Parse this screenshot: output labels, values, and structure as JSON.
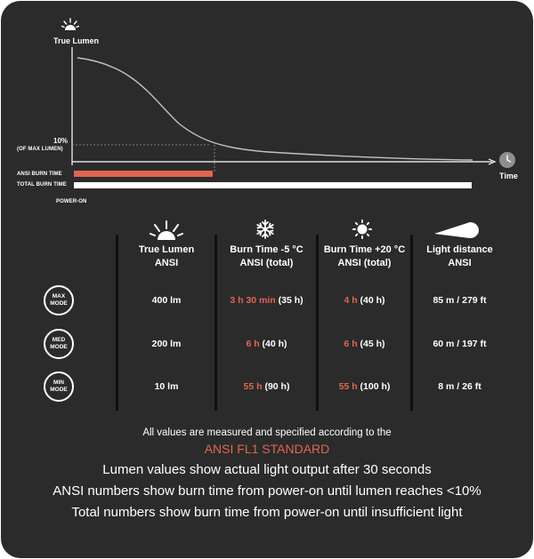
{
  "colors": {
    "background": "#2b2b2b",
    "accent": "#e0664f",
    "text": "#ffffff",
    "curve": "#bdbdbd"
  },
  "graph": {
    "y_axis_label": "True Lumen",
    "x_axis_label": "Time",
    "threshold_label": "10%",
    "threshold_sublabel": "(OF MAX LUMEN)",
    "ansi_burn_label": "ANSI BURN TIME",
    "total_burn_label": "TOTAL BURN TIME",
    "power_on_label": "POWER-ON",
    "ansi_burn_fraction": 0.35,
    "total_burn_fraction": 1.0,
    "threshold_fraction": 0.1,
    "icons": {
      "y_axis": "sun-icon",
      "x_axis": "clock-icon"
    }
  },
  "table": {
    "headers": [
      {
        "icon": "sun-rays-icon",
        "line1": "True Lumen",
        "line2": "ANSI"
      },
      {
        "icon": "snowflake-icon",
        "line1": "Burn Time -5 °C",
        "line2": "ANSI  (total)"
      },
      {
        "icon": "sun-icon",
        "line1": "Burn Time +20 °C",
        "line2": "ANSI  (total)"
      },
      {
        "icon": "beam-icon",
        "line1": "Light distance",
        "line2": "ANSI"
      }
    ],
    "rows": [
      {
        "mode_line1": "MAX",
        "mode_line2": "MODE",
        "lumen": "400 lm",
        "cold_ansi": "3 h 30 min",
        "cold_total": " (35 h)",
        "warm_ansi": "4 h",
        "warm_total": " (40 h)",
        "distance": "85 m / 279 ft"
      },
      {
        "mode_line1": "MED",
        "mode_line2": "MODE",
        "lumen": "200 lm",
        "cold_ansi": "6 h",
        "cold_total": " (40 h)",
        "warm_ansi": "6 h",
        "warm_total": " (45 h)",
        "distance": "60 m / 197 ft"
      },
      {
        "mode_line1": "MIN",
        "mode_line2": "MODE",
        "lumen": "10 lm",
        "cold_ansi": "55 h",
        "cold_total": " (90 h)",
        "warm_ansi": "55 h",
        "warm_total": " (100 h)",
        "distance": "8 m / 26 ft"
      }
    ]
  },
  "footer": {
    "line1": "All values are measured and specified according to the",
    "standard": "ANSI FL1 STANDARD",
    "line2": "Lumen values show actual light output after 30 seconds",
    "line3": "ANSI numbers show burn time from power-on until lumen reaches <10%",
    "line4": "Total numbers show burn time from power-on until insufficient light"
  }
}
